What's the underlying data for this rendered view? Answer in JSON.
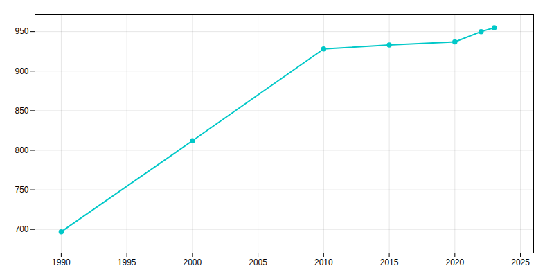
{
  "chart_data": {
    "type": "line",
    "x": [
      1990,
      2000,
      2010,
      2015,
      2020,
      2022,
      2023
    ],
    "values": [
      697,
      812,
      928,
      933,
      937,
      950,
      955
    ],
    "color": "#00c8c8",
    "marker": "o",
    "xlim": [
      1988,
      2026
    ],
    "ylim": [
      670,
      972
    ],
    "xticks": [
      1990,
      1995,
      2000,
      2005,
      2010,
      2015,
      2020,
      2025
    ],
    "yticks": [
      700,
      750,
      800,
      850,
      900,
      950
    ],
    "grid": true
  }
}
